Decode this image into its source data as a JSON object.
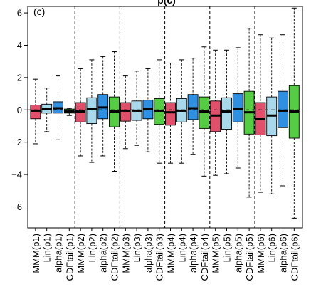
{
  "chart_data": {
    "type": "box",
    "title": "p(c)",
    "panel_label": "(c)",
    "ylim": [
      -7.3,
      6.4
    ],
    "yticks": [
      -6,
      -4,
      -2,
      0,
      2,
      4,
      6
    ],
    "reference_line_y": 0,
    "group_separators_after": [
      4,
      8,
      12,
      16,
      20
    ],
    "colors": {
      "MMM": "#e0506a",
      "Lin": "#a8d8ea",
      "alpha": "#2f8fe0",
      "CDFtail": "#55cc44"
    },
    "boxes": [
      {
        "label": "MMM(p1)",
        "method": "MMM",
        "whisker_low": -2.1,
        "q1": -0.55,
        "median": -0.05,
        "q3": 0.3,
        "whisker_high": 1.9
      },
      {
        "label": "Lin(p1)",
        "method": "Lin",
        "whisker_low": -1.35,
        "q1": -0.2,
        "median": 0.05,
        "q3": 0.35,
        "whisker_high": 1.35
      },
      {
        "label": "alpha(p1)",
        "method": "alpha",
        "whisker_low": -1.85,
        "q1": -0.2,
        "median": 0.1,
        "q3": 0.5,
        "whisker_high": 2.1
      },
      {
        "label": "CDFtail(p1)",
        "method": "CDFtail",
        "whisker_low": -0.35,
        "q1": -0.2,
        "median": -0.1,
        "q3": 0.05,
        "whisker_high": 0.1
      },
      {
        "label": "MMM(p2)",
        "method": "MMM",
        "whisker_low": -2.85,
        "q1": -0.75,
        "median": -0.1,
        "q3": 0.45,
        "whisker_high": 2.55
      },
      {
        "label": "Lin(p2)",
        "method": "Lin",
        "whisker_low": -3.25,
        "q1": -0.85,
        "median": 0.05,
        "q3": 0.75,
        "whisker_high": 3.1
      },
      {
        "label": "alpha(p2)",
        "method": "alpha",
        "whisker_low": -2.85,
        "q1": -0.55,
        "median": 0.15,
        "q3": 0.95,
        "whisker_high": 3.3
      },
      {
        "label": "CDFtail(p2)",
        "method": "CDFtail",
        "whisker_low": -3.8,
        "q1": -1.05,
        "median": -0.1,
        "q3": 0.8,
        "whisker_high": 3.6
      },
      {
        "label": "MMM(p3)",
        "method": "MMM",
        "whisker_low": -2.4,
        "q1": -0.7,
        "median": -0.05,
        "q3": 0.45,
        "whisker_high": 2.1
      },
      {
        "label": "Lin(p3)",
        "method": "Lin",
        "whisker_low": -2.2,
        "q1": -0.65,
        "median": -0.05,
        "q3": 0.55,
        "whisker_high": 2.4
      },
      {
        "label": "alpha(p3)",
        "method": "alpha",
        "whisker_low": -2.6,
        "q1": -0.55,
        "median": 0.05,
        "q3": 0.6,
        "whisker_high": 2.55
      },
      {
        "label": "CDFtail(p3)",
        "method": "CDFtail",
        "whisker_low": -3.3,
        "q1": -0.9,
        "median": -0.05,
        "q3": 0.7,
        "whisker_high": 3.1
      },
      {
        "label": "MMM(p4)",
        "method": "MMM",
        "whisker_low": -3.3,
        "q1": -0.95,
        "median": -0.15,
        "q3": 0.45,
        "whisker_high": 2.9
      },
      {
        "label": "Lin(p4)",
        "method": "Lin",
        "whisker_low": -3.3,
        "q1": -0.75,
        "median": -0.05,
        "q3": 0.7,
        "whisker_high": 3.1
      },
      {
        "label": "alpha(p4)",
        "method": "alpha",
        "whisker_low": -2.75,
        "q1": -0.6,
        "median": 0.1,
        "q3": 0.95,
        "whisker_high": 3.2
      },
      {
        "label": "CDFtail(p4)",
        "method": "CDFtail",
        "whisker_low": -4.1,
        "q1": -1.15,
        "median": -0.1,
        "q3": 0.8,
        "whisker_high": 3.9
      },
      {
        "label": "MMM(p5)",
        "method": "MMM",
        "whisker_low": -4.05,
        "q1": -1.35,
        "median": -0.35,
        "q3": 0.55,
        "whisker_high": 3.7
      },
      {
        "label": "Lin(p5)",
        "method": "Lin",
        "whisker_low": -3.95,
        "q1": -1.2,
        "median": -0.1,
        "q3": 0.75,
        "whisker_high": 3.7
      },
      {
        "label": "alpha(p5)",
        "method": "alpha",
        "whisker_low": -3.6,
        "q1": -0.75,
        "median": 0.05,
        "q3": 1.0,
        "whisker_high": 3.85
      },
      {
        "label": "CDFtail(p5)",
        "method": "CDFtail",
        "whisker_low": -5.4,
        "q1": -1.5,
        "median": -0.15,
        "q3": 1.15,
        "whisker_high": 5.05
      },
      {
        "label": "MMM(p6)",
        "method": "MMM",
        "whisker_low": -5.1,
        "q1": -1.55,
        "median": -0.55,
        "q3": 0.45,
        "whisker_high": 4.65
      },
      {
        "label": "Lin(p6)",
        "method": "Lin",
        "whisker_low": -5.2,
        "q1": -1.6,
        "median": -0.35,
        "q3": 0.8,
        "whisker_high": 4.45
      },
      {
        "label": "alpha(p6)",
        "method": "alpha",
        "whisker_low": -4.7,
        "q1": -1.1,
        "median": -0.05,
        "q3": 1.15,
        "whisker_high": 4.65
      },
      {
        "label": "CDFtail(p6)",
        "method": "CDFtail",
        "whisker_low": -6.7,
        "q1": -1.75,
        "median": -0.1,
        "q3": 1.5,
        "whisker_high": 6.3
      }
    ]
  }
}
